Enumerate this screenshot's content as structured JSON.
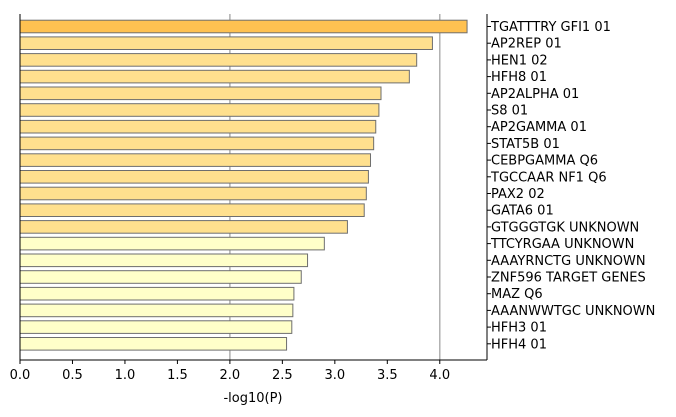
{
  "chart_data": {
    "type": "bar",
    "orientation": "horizontal",
    "xlabel": "-log10(P)",
    "xlim": [
      0,
      4.45
    ],
    "xticks": [
      0.0,
      0.5,
      1.0,
      1.5,
      2.0,
      2.5,
      3.0,
      3.5,
      4.0
    ],
    "xtick_labels": [
      "0.0",
      "0.5",
      "1.0",
      "1.5",
      "2.0",
      "2.5",
      "3.0",
      "3.5",
      "4.0"
    ],
    "vertical_reference_lines": [
      2.0,
      4.0
    ],
    "category_labels_side": "right",
    "categories": [
      "TGATTTRY GFI1 01",
      "AP2REP 01",
      "HEN1 02",
      "HFH8 01",
      "AP2ALPHA 01",
      "S8 01",
      "AP2GAMMA 01",
      "STAT5B 01",
      "CEBPGAMMA Q6",
      "TGCCAAR NF1 Q6",
      "PAX2 02",
      "GATA6 01",
      "GTGGGTGK UNKNOWN",
      "TTCYRGAA UNKNOWN",
      "AAAYRNCTG UNKNOWN",
      "ZNF596 TARGET GENES",
      "MAZ Q6",
      "AAANWWTGC UNKNOWN",
      "HFH3 01",
      "HFH4 01"
    ],
    "values": [
      4.26,
      3.93,
      3.78,
      3.71,
      3.44,
      3.42,
      3.39,
      3.37,
      3.34,
      3.32,
      3.3,
      3.28,
      3.12,
      2.9,
      2.74,
      2.68,
      2.61,
      2.6,
      2.59,
      2.54
    ],
    "colors": [
      "#ffc151",
      "#ffe08e",
      "#ffe08e",
      "#ffe08e",
      "#ffe08e",
      "#ffe08e",
      "#ffe08e",
      "#ffe08e",
      "#ffe08e",
      "#ffe08e",
      "#ffe08e",
      "#ffe08e",
      "#ffe08e",
      "#ffffc9",
      "#ffffc9",
      "#ffffc9",
      "#ffffc9",
      "#ffffc9",
      "#ffffc9",
      "#ffffc9"
    ],
    "bar_edge_color": "#6e6e6e",
    "reference_line_color": "#b0b0b0"
  }
}
